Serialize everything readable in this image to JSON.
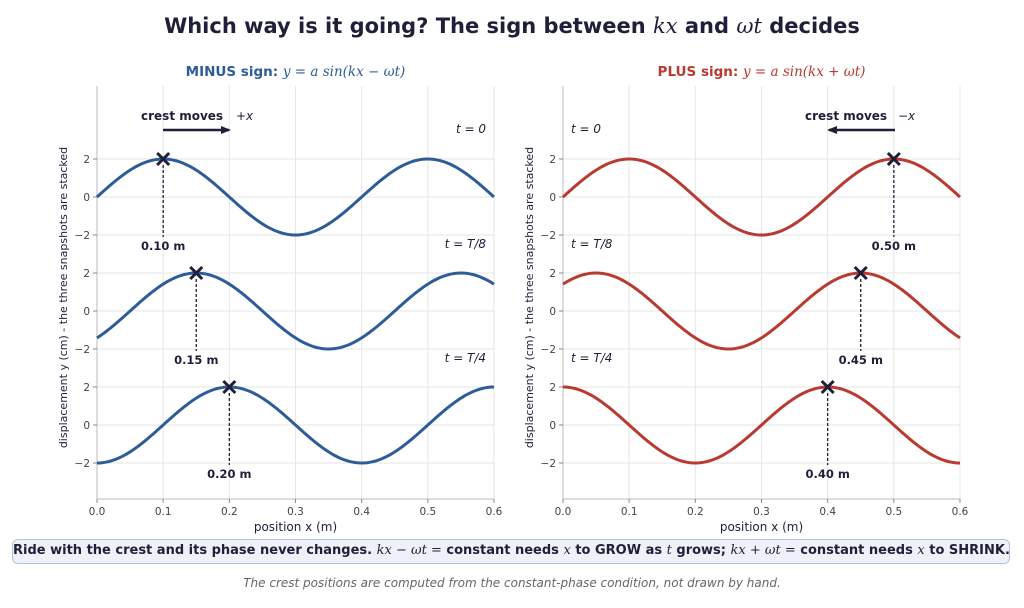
{
  "title": {
    "prefix": "Which way is it going?  The sign between ",
    "kx": "kx",
    "and": " and ",
    "wt": "ωt",
    "suffix": " decides"
  },
  "colors": {
    "minus": "#2e5c99",
    "plus": "#b83a30",
    "crest_marker": "#1f1f3a",
    "grid": "#e6e6e6"
  },
  "y_axis_label": "displacement  y  (cm)   -   the three snapshots are stacked",
  "x_axis_label": "position  x  (m)",
  "chart_data": [
    {
      "type": "line",
      "panel": "minus",
      "title_bold": "MINUS sign:",
      "title_math": "y = a sin(kx − ωt)",
      "arrow_label": "crest moves",
      "arrow_label_math": "+x",
      "arrow_direction": "right",
      "xlim": [
        0,
        0.6
      ],
      "x_ticks": [
        "0.0",
        "0.1",
        "0.2",
        "0.3",
        "0.4",
        "0.5",
        "0.6"
      ],
      "y_ticks": [
        "2",
        "0",
        "−2"
      ],
      "amplitude": 2,
      "wavelength": 0.4,
      "grid": true,
      "series": [
        {
          "name": "t = 0",
          "crest_x": 0.1,
          "crest_label": "0.10 m"
        },
        {
          "name": "t = T/8",
          "crest_x": 0.15,
          "crest_label": "0.15 m"
        },
        {
          "name": "t = T/4",
          "crest_x": 0.2,
          "crest_label": "0.20 m"
        }
      ]
    },
    {
      "type": "line",
      "panel": "plus",
      "title_bold": "PLUS sign:",
      "title_math": "y = a sin(kx + ωt)",
      "arrow_label": "crest moves",
      "arrow_label_math": "−x",
      "arrow_direction": "left",
      "xlim": [
        0,
        0.6
      ],
      "x_ticks": [
        "0.0",
        "0.1",
        "0.2",
        "0.3",
        "0.4",
        "0.5",
        "0.6"
      ],
      "y_ticks": [
        "2",
        "0",
        "−2"
      ],
      "amplitude": 2,
      "wavelength": 0.4,
      "grid": true,
      "series": [
        {
          "name": "t = 0",
          "crest_x": 0.5,
          "crest_label": "0.50 m"
        },
        {
          "name": "t = T/8",
          "crest_x": 0.45,
          "crest_label": "0.45 m"
        },
        {
          "name": "t = T/4",
          "crest_x": 0.4,
          "crest_label": "0.40 m"
        }
      ]
    }
  ],
  "footer": {
    "part1": "Ride with the crest and its phase never changes.  ",
    "math1": "kx − ωt =",
    "part2": " constant needs ",
    "x1": "x",
    "part3": " to GROW as ",
    "t1": "t",
    "part4": " grows;  ",
    "math2": "kx + ωt =",
    "part5": " constant needs ",
    "x2": "x",
    "part6": " to SHRINK."
  },
  "footnote": "The crest positions are computed from the constant-phase condition, not drawn by hand."
}
